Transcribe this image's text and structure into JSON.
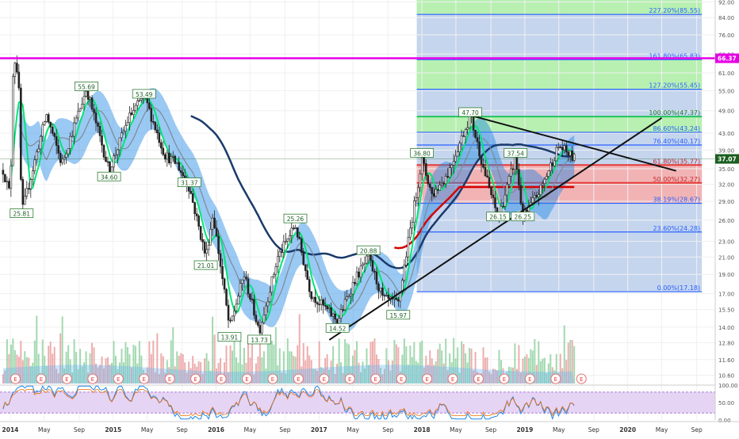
{
  "chart_data": {
    "type": "candlestick",
    "symbol_context": "",
    "price_axis": {
      "scale": "log",
      "ylim": [
        10.1,
        93
      ],
      "ticks": [
        {
          "label": "92.00",
          "value": 92
        },
        {
          "label": "84.00",
          "value": 84
        },
        {
          "label": "76.00",
          "value": 76
        },
        {
          "label": "68.00",
          "value": 68
        },
        {
          "label": "61.00",
          "value": 61
        },
        {
          "label": "55.00",
          "value": 55
        },
        {
          "label": "49.00",
          "value": 49
        },
        {
          "label": "43.00",
          "value": 43
        },
        {
          "label": "39.00",
          "value": 39
        },
        {
          "label": "35.00",
          "value": 35
        },
        {
          "label": "32.00",
          "value": 32
        },
        {
          "label": "29.00",
          "value": 29
        },
        {
          "label": "26.00",
          "value": 26
        },
        {
          "label": "23.00",
          "value": 23
        },
        {
          "label": "21.00",
          "value": 21
        },
        {
          "label": "19.00",
          "value": 19
        },
        {
          "label": "17.00",
          "value": 17
        },
        {
          "label": "15.50",
          "value": 15.5
        },
        {
          "label": "14.00",
          "value": 14
        },
        {
          "label": "12.80",
          "value": 12.8
        },
        {
          "label": "11.60",
          "value": 11.6
        },
        {
          "label": "10.60",
          "value": 10.6
        }
      ],
      "current_price_label": "37.07",
      "current_price": 37.07,
      "horizontal_line_label": "66.37",
      "horizontal_line_value": 66.37
    },
    "oscillator_axis": {
      "ylim": [
        0,
        100
      ],
      "ticks": [
        {
          "label": "100.00",
          "value": 100
        },
        {
          "label": "50.00",
          "value": 50
        },
        {
          "label": "0.00",
          "value": 0
        }
      ],
      "bands": [
        80,
        20
      ]
    },
    "time_axis": {
      "xlim": [
        2013.9,
        2020.85
      ],
      "ticks": [
        {
          "label": "2014",
          "t": 2014.0
        },
        {
          "label": "May",
          "t": 2014.33
        },
        {
          "label": "Sep",
          "t": 2014.67
        },
        {
          "label": "2015",
          "t": 2015.0
        },
        {
          "label": "May",
          "t": 2015.33
        },
        {
          "label": "Sep",
          "t": 2015.67
        },
        {
          "label": "2016",
          "t": 2016.0
        },
        {
          "label": "May",
          "t": 2016.33
        },
        {
          "label": "Sep",
          "t": 2016.67
        },
        {
          "label": "2017",
          "t": 2017.0
        },
        {
          "label": "May",
          "t": 2017.33
        },
        {
          "label": "Sep",
          "t": 2017.67
        },
        {
          "label": "2018",
          "t": 2018.0
        },
        {
          "label": "May",
          "t": 2018.33
        },
        {
          "label": "Sep",
          "t": 2018.67
        },
        {
          "label": "2019",
          "t": 2019.0
        },
        {
          "label": "May",
          "t": 2019.33
        },
        {
          "label": "Sep",
          "t": 2019.67
        },
        {
          "label": "2020",
          "t": 2020.0
        },
        {
          "label": "May",
          "t": 2020.33
        },
        {
          "label": "Sep",
          "t": 2020.67
        }
      ]
    },
    "fibonacci": {
      "t_start": 2017.95,
      "t_end": 2020.72,
      "levels": [
        {
          "label": "227.20%(85.55)",
          "value": 85.55,
          "color": "#2962ff"
        },
        {
          "label": "161.80%(65.83)",
          "value": 65.83,
          "color": "#2962ff"
        },
        {
          "label": "127.20%(55.45)",
          "value": 55.45,
          "color": "#2962ff"
        },
        {
          "label": "100.00%(47.37)",
          "value": 47.37,
          "color": "#22c55e"
        },
        {
          "label": "86.60%(43.24)",
          "value": 43.24,
          "color": "#2962ff"
        },
        {
          "label": "76.40%(40.17)",
          "value": 40.17,
          "color": "#2962ff"
        },
        {
          "label": "61.80%(35.77)",
          "value": 35.77,
          "color": "#e53935"
        },
        {
          "label": "50.00%(32.27)",
          "value": 32.27,
          "color": "#e53935"
        },
        {
          "label": "38.19%(28.67)",
          "value": 28.67,
          "color": "#2962ff"
        },
        {
          "label": "23.60%(24.28)",
          "value": 24.28,
          "color": "#2962ff"
        },
        {
          "label": "0.00%(17.18)",
          "value": 17.18,
          "color": "#2962ff"
        }
      ],
      "green_zones": [
        [
          85.55,
          93
        ],
        [
          55.45,
          65.83
        ],
        [
          43.24,
          47.37
        ]
      ],
      "red_zone": [
        28.67,
        35.77
      ]
    },
    "annotations": [
      {
        "label": "25.81",
        "t": 2014.11,
        "value": 27.0,
        "pos": "below"
      },
      {
        "label": "55.69",
        "t": 2014.74,
        "value": 56.3,
        "pos": "above"
      },
      {
        "label": "34.60",
        "t": 2014.96,
        "value": 33.4,
        "pos": "below"
      },
      {
        "label": "53.49",
        "t": 2015.3,
        "value": 53.9,
        "pos": "above"
      },
      {
        "label": "31.37",
        "t": 2015.74,
        "value": 32.3,
        "pos": "above"
      },
      {
        "label": "21.01",
        "t": 2015.9,
        "value": 20.0,
        "pos": "below"
      },
      {
        "label": "13.91",
        "t": 2016.13,
        "value": 13.2,
        "pos": "below"
      },
      {
        "label": "13.73",
        "t": 2016.42,
        "value": 13.0,
        "pos": "below"
      },
      {
        "label": "25.26",
        "t": 2016.77,
        "value": 26.2,
        "pos": "above"
      },
      {
        "label": "14.52",
        "t": 2017.18,
        "value": 13.9,
        "pos": "below"
      },
      {
        "label": "20.88",
        "t": 2017.48,
        "value": 21.8,
        "pos": "above"
      },
      {
        "label": "15.97",
        "t": 2017.77,
        "value": 15.0,
        "pos": "below"
      },
      {
        "label": "36.80",
        "t": 2018.0,
        "value": 38.3,
        "pos": "above"
      },
      {
        "label": "47.70",
        "t": 2018.47,
        "value": 48.5,
        "pos": "above"
      },
      {
        "label": "37.54",
        "t": 2018.91,
        "value": 38.3,
        "pos": "above"
      },
      {
        "label": "26.15",
        "t": 2018.74,
        "value": 26.5,
        "pos": "below"
      },
      {
        "label": "26.25",
        "t": 2018.98,
        "value": 26.5,
        "pos": "below"
      }
    ],
    "trendlines": [
      {
        "name": "descending",
        "points": [
          [
            2018.47,
            47.7
          ],
          [
            2020.47,
            34.6
          ]
        ]
      },
      {
        "name": "ascending",
        "points": [
          [
            2017.1,
            13.0
          ],
          [
            2020.33,
            47.0
          ]
        ]
      }
    ],
    "horizontal_line_color": "#e600e6",
    "earnings_marker_label": "E",
    "series_colors": {
      "up": "#26a69a",
      "down": "#ef5350",
      "wick": "#222222",
      "ma_fast": "#00e676",
      "ma_mid": "#1565c0",
      "ma_slow": "#1a3a6b",
      "ma_red": "#d50000",
      "band": "#1e88e5"
    }
  }
}
